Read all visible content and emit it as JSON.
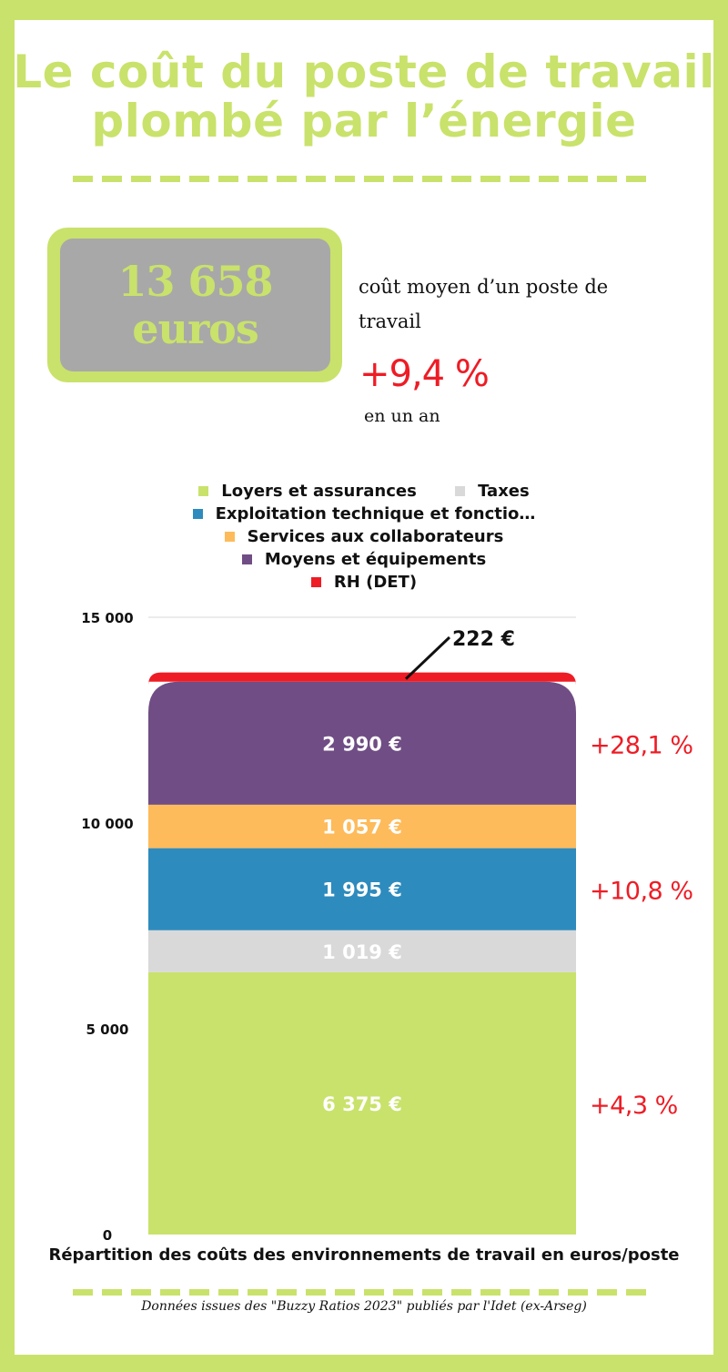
{
  "title": {
    "line1": "Le coût du poste de travail",
    "line2": "plombé par l’énergie"
  },
  "headline": {
    "value_line1": "13 658",
    "value_line2": "euros",
    "description": "coût moyen d’un poste de travail",
    "change": "+9,4 %",
    "period": "en un an"
  },
  "chart_data": {
    "type": "bar",
    "stacked": true,
    "categories": [
      ""
    ],
    "ylim": [
      0,
      15000
    ],
    "yticks": [
      0,
      5000,
      10000,
      15000
    ],
    "ytick_labels": [
      "0",
      "5 000",
      "10 000",
      "15 000"
    ],
    "grid": true,
    "legend_position": "top",
    "series": [
      {
        "name": "Loyers et assurances",
        "values": [
          6375
        ],
        "label": "6 375 €",
        "color": "#c9e26b",
        "label_color": "#ffffff",
        "change": "+4,3 %"
      },
      {
        "name": "Taxes",
        "values": [
          1019
        ],
        "label": "1 019 €",
        "color": "#d9d9d9",
        "label_color": "#ffffff",
        "change": ""
      },
      {
        "name": "Exploitation technique et fonctio…",
        "values": [
          1995
        ],
        "label": "1 995 €",
        "color": "#2e8bbd",
        "label_color": "#ffffff",
        "change": "+10,8 %"
      },
      {
        "name": "Services aux collaborateurs",
        "values": [
          1057
        ],
        "label": "1 057 €",
        "color": "#fdbb5b",
        "label_color": "#ffffff",
        "change": ""
      },
      {
        "name": "Moyens et équipements",
        "values": [
          2990
        ],
        "label": "2 990 €",
        "color": "#704d84",
        "label_color": "#ffffff",
        "change": "+28,1 %"
      },
      {
        "name": "RH (DET)",
        "values": [
          222
        ],
        "label": "222 €",
        "color": "#ee1c25",
        "label_color": "#111111",
        "change": ""
      }
    ],
    "xlabel": "Répartition des coûts des environnements de travail en euros/poste",
    "colors": {
      "change": "#ee1c25",
      "grid": "#d9d9d9"
    }
  },
  "footer": "Données issues des \"Buzzy Ratios 2023\" publiés par l'Idet (ex-Arseg)"
}
